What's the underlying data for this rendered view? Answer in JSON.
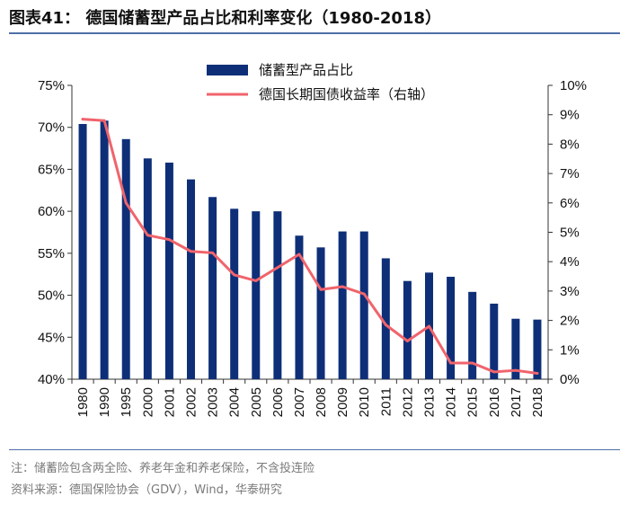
{
  "figure": {
    "title": "图表41：  德国储蓄型产品占比和利率变化（1980-2018）",
    "note": "注：储蓄险包含两全险、养老年金和养老保险，不含投连险",
    "source": "资料来源：德国保险协会（GDV），Wind，华泰研究"
  },
  "colors": {
    "bar": "#0e2f78",
    "line": "#f0646c",
    "rule": "#4f6fa8",
    "axis": "#333333",
    "text": "#111111"
  },
  "chart_data": {
    "type": "bar",
    "title": "德国储蓄型产品占比和利率变化（1980-2018）",
    "categories": [
      "1980",
      "1990",
      "1995",
      "2000",
      "2001",
      "2002",
      "2003",
      "2004",
      "2005",
      "2006",
      "2007",
      "2008",
      "2009",
      "2010",
      "2011",
      "2012",
      "2013",
      "2014",
      "2015",
      "2016",
      "2017",
      "2018"
    ],
    "series": [
      {
        "name": "储蓄型产品占比",
        "type": "bar",
        "axis": "left",
        "values": [
          70.4,
          70.8,
          68.6,
          66.3,
          65.8,
          63.8,
          61.7,
          60.3,
          60.0,
          60.0,
          57.1,
          55.7,
          57.6,
          57.6,
          54.4,
          51.7,
          52.7,
          52.2,
          50.4,
          49.0,
          47.2,
          47.1
        ]
      },
      {
        "name": "德国长期国债收益率（右轴）",
        "type": "line",
        "axis": "right",
        "values": [
          8.85,
          8.8,
          6.0,
          4.9,
          4.75,
          4.35,
          4.3,
          3.55,
          3.35,
          3.8,
          4.25,
          3.05,
          3.15,
          2.9,
          1.85,
          1.3,
          1.8,
          0.55,
          0.55,
          0.25,
          0.3,
          0.2
        ]
      }
    ],
    "left_axis": {
      "min": 40,
      "max": 75,
      "step": 5,
      "unit": "%",
      "ticks": [
        "40%",
        "45%",
        "50%",
        "55%",
        "60%",
        "65%",
        "70%",
        "75%"
      ]
    },
    "right_axis": {
      "min": 0,
      "max": 10,
      "step": 1,
      "unit": "%",
      "ticks": [
        "0%",
        "1%",
        "2%",
        "3%",
        "4%",
        "5%",
        "6%",
        "7%",
        "8%",
        "9%",
        "10%"
      ]
    },
    "legend": {
      "placement": "top-center",
      "entries": [
        "储蓄型产品占比",
        "德国长期国债收益率（右轴）"
      ]
    },
    "xlabel": "",
    "ylabel": "",
    "grid": false
  }
}
